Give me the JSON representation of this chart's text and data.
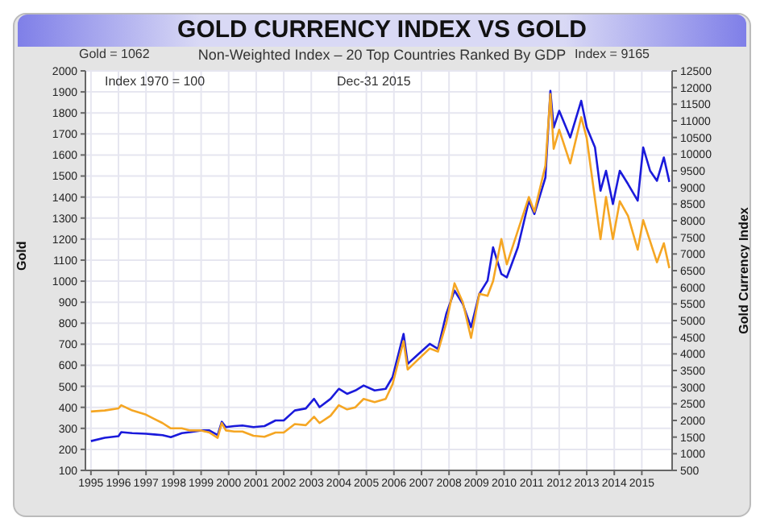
{
  "chart_data": {
    "type": "line",
    "title": "GOLD CURRENCY INDEX VS GOLD",
    "subtitle": "Non-Weighted Index – 20 Top Countries Ranked By GDP",
    "annotations": [
      "Gold = 1062",
      "Index = 9165",
      "Index 1970 = 100",
      "Dec-31  2015"
    ],
    "ylabel": "Gold",
    "y2label": "Gold Currency Index",
    "grid": true,
    "legend": false,
    "marker": "none",
    "line_style": "solid",
    "xlim": [
      1994.8,
      2016.1
    ],
    "xticks": [
      1995,
      1996,
      1997,
      1998,
      1999,
      2000,
      2001,
      2002,
      2003,
      2004,
      2005,
      2006,
      2007,
      2008,
      2009,
      2010,
      2011,
      2012,
      2013,
      2014,
      2015
    ],
    "ylim": [
      100,
      2000
    ],
    "yticks": [
      100,
      200,
      300,
      400,
      500,
      600,
      700,
      800,
      900,
      1000,
      1100,
      1200,
      1300,
      1400,
      1500,
      1600,
      1700,
      1800,
      1900,
      2000
    ],
    "y2lim": [
      500,
      12500
    ],
    "y2ticks": [
      500,
      1000,
      1500,
      2000,
      2500,
      3000,
      3500,
      4000,
      4500,
      5000,
      5500,
      6000,
      6500,
      7000,
      7500,
      8000,
      8500,
      9000,
      9500,
      10000,
      10500,
      11000,
      11500,
      12000,
      12500
    ],
    "x": [
      1995.0,
      1995.5,
      1996.0,
      1996.1,
      1996.5,
      1997.0,
      1997.3,
      1997.6,
      1997.9,
      1998.3,
      1998.6,
      1999.0,
      1999.3,
      1999.6,
      1999.75,
      1999.9,
      2000.2,
      2000.5,
      2000.9,
      2001.3,
      2001.7,
      2002.0,
      2002.4,
      2002.8,
      2003.1,
      2003.3,
      2003.7,
      2004.0,
      2004.3,
      2004.6,
      2004.9,
      2005.3,
      2005.7,
      2005.95,
      2006.35,
      2006.5,
      2006.9,
      2007.3,
      2007.6,
      2007.9,
      2008.2,
      2008.5,
      2008.8,
      2009.1,
      2009.4,
      2009.6,
      2009.9,
      2010.1,
      2010.5,
      2010.9,
      2011.1,
      2011.5,
      2011.68,
      2011.8,
      2012.0,
      2012.4,
      2012.8,
      2013.0,
      2013.3,
      2013.5,
      2013.7,
      2013.95,
      2014.2,
      2014.5,
      2014.85,
      2015.05,
      2015.3,
      2015.55,
      2015.8,
      2016.0
    ],
    "series": [
      {
        "color": "#f5a623",
        "values": [
          380,
          385,
          395,
          410,
          385,
          365,
          345,
          325,
          300,
          300,
          290,
          290,
          280,
          255,
          325,
          290,
          285,
          285,
          265,
          260,
          280,
          280,
          320,
          315,
          355,
          325,
          360,
          410,
          390,
          400,
          440,
          425,
          440,
          510,
          715,
          580,
          630,
          680,
          665,
          800,
          990,
          900,
          730,
          940,
          930,
          1000,
          1200,
          1080,
          1240,
          1400,
          1330,
          1550,
          1890,
          1630,
          1720,
          1560,
          1780,
          1680,
          1390,
          1200,
          1400,
          1200,
          1380,
          1310,
          1150,
          1290,
          1190,
          1090,
          1180,
          1062
        ]
      },
      {
        "color": "#1a1adb",
        "axis": "y2",
        "values": [
          1380,
          1480,
          1530,
          1650,
          1620,
          1600,
          1580,
          1560,
          1500,
          1620,
          1650,
          1700,
          1700,
          1560,
          1960,
          1800,
          1830,
          1850,
          1800,
          1830,
          2000,
          2000,
          2300,
          2360,
          2650,
          2400,
          2650,
          2950,
          2800,
          2900,
          3050,
          2900,
          2950,
          3300,
          4600,
          3700,
          4000,
          4300,
          4150,
          5200,
          5900,
          5500,
          4800,
          5800,
          6200,
          7200,
          6400,
          6300,
          7200,
          8600,
          8200,
          9300,
          11900,
          10800,
          11300,
          10500,
          11600,
          10800,
          10200,
          8900,
          9500,
          8500,
          9500,
          9100,
          8600,
          10200,
          9500,
          9200,
          9900,
          9165
        ]
      }
    ]
  }
}
